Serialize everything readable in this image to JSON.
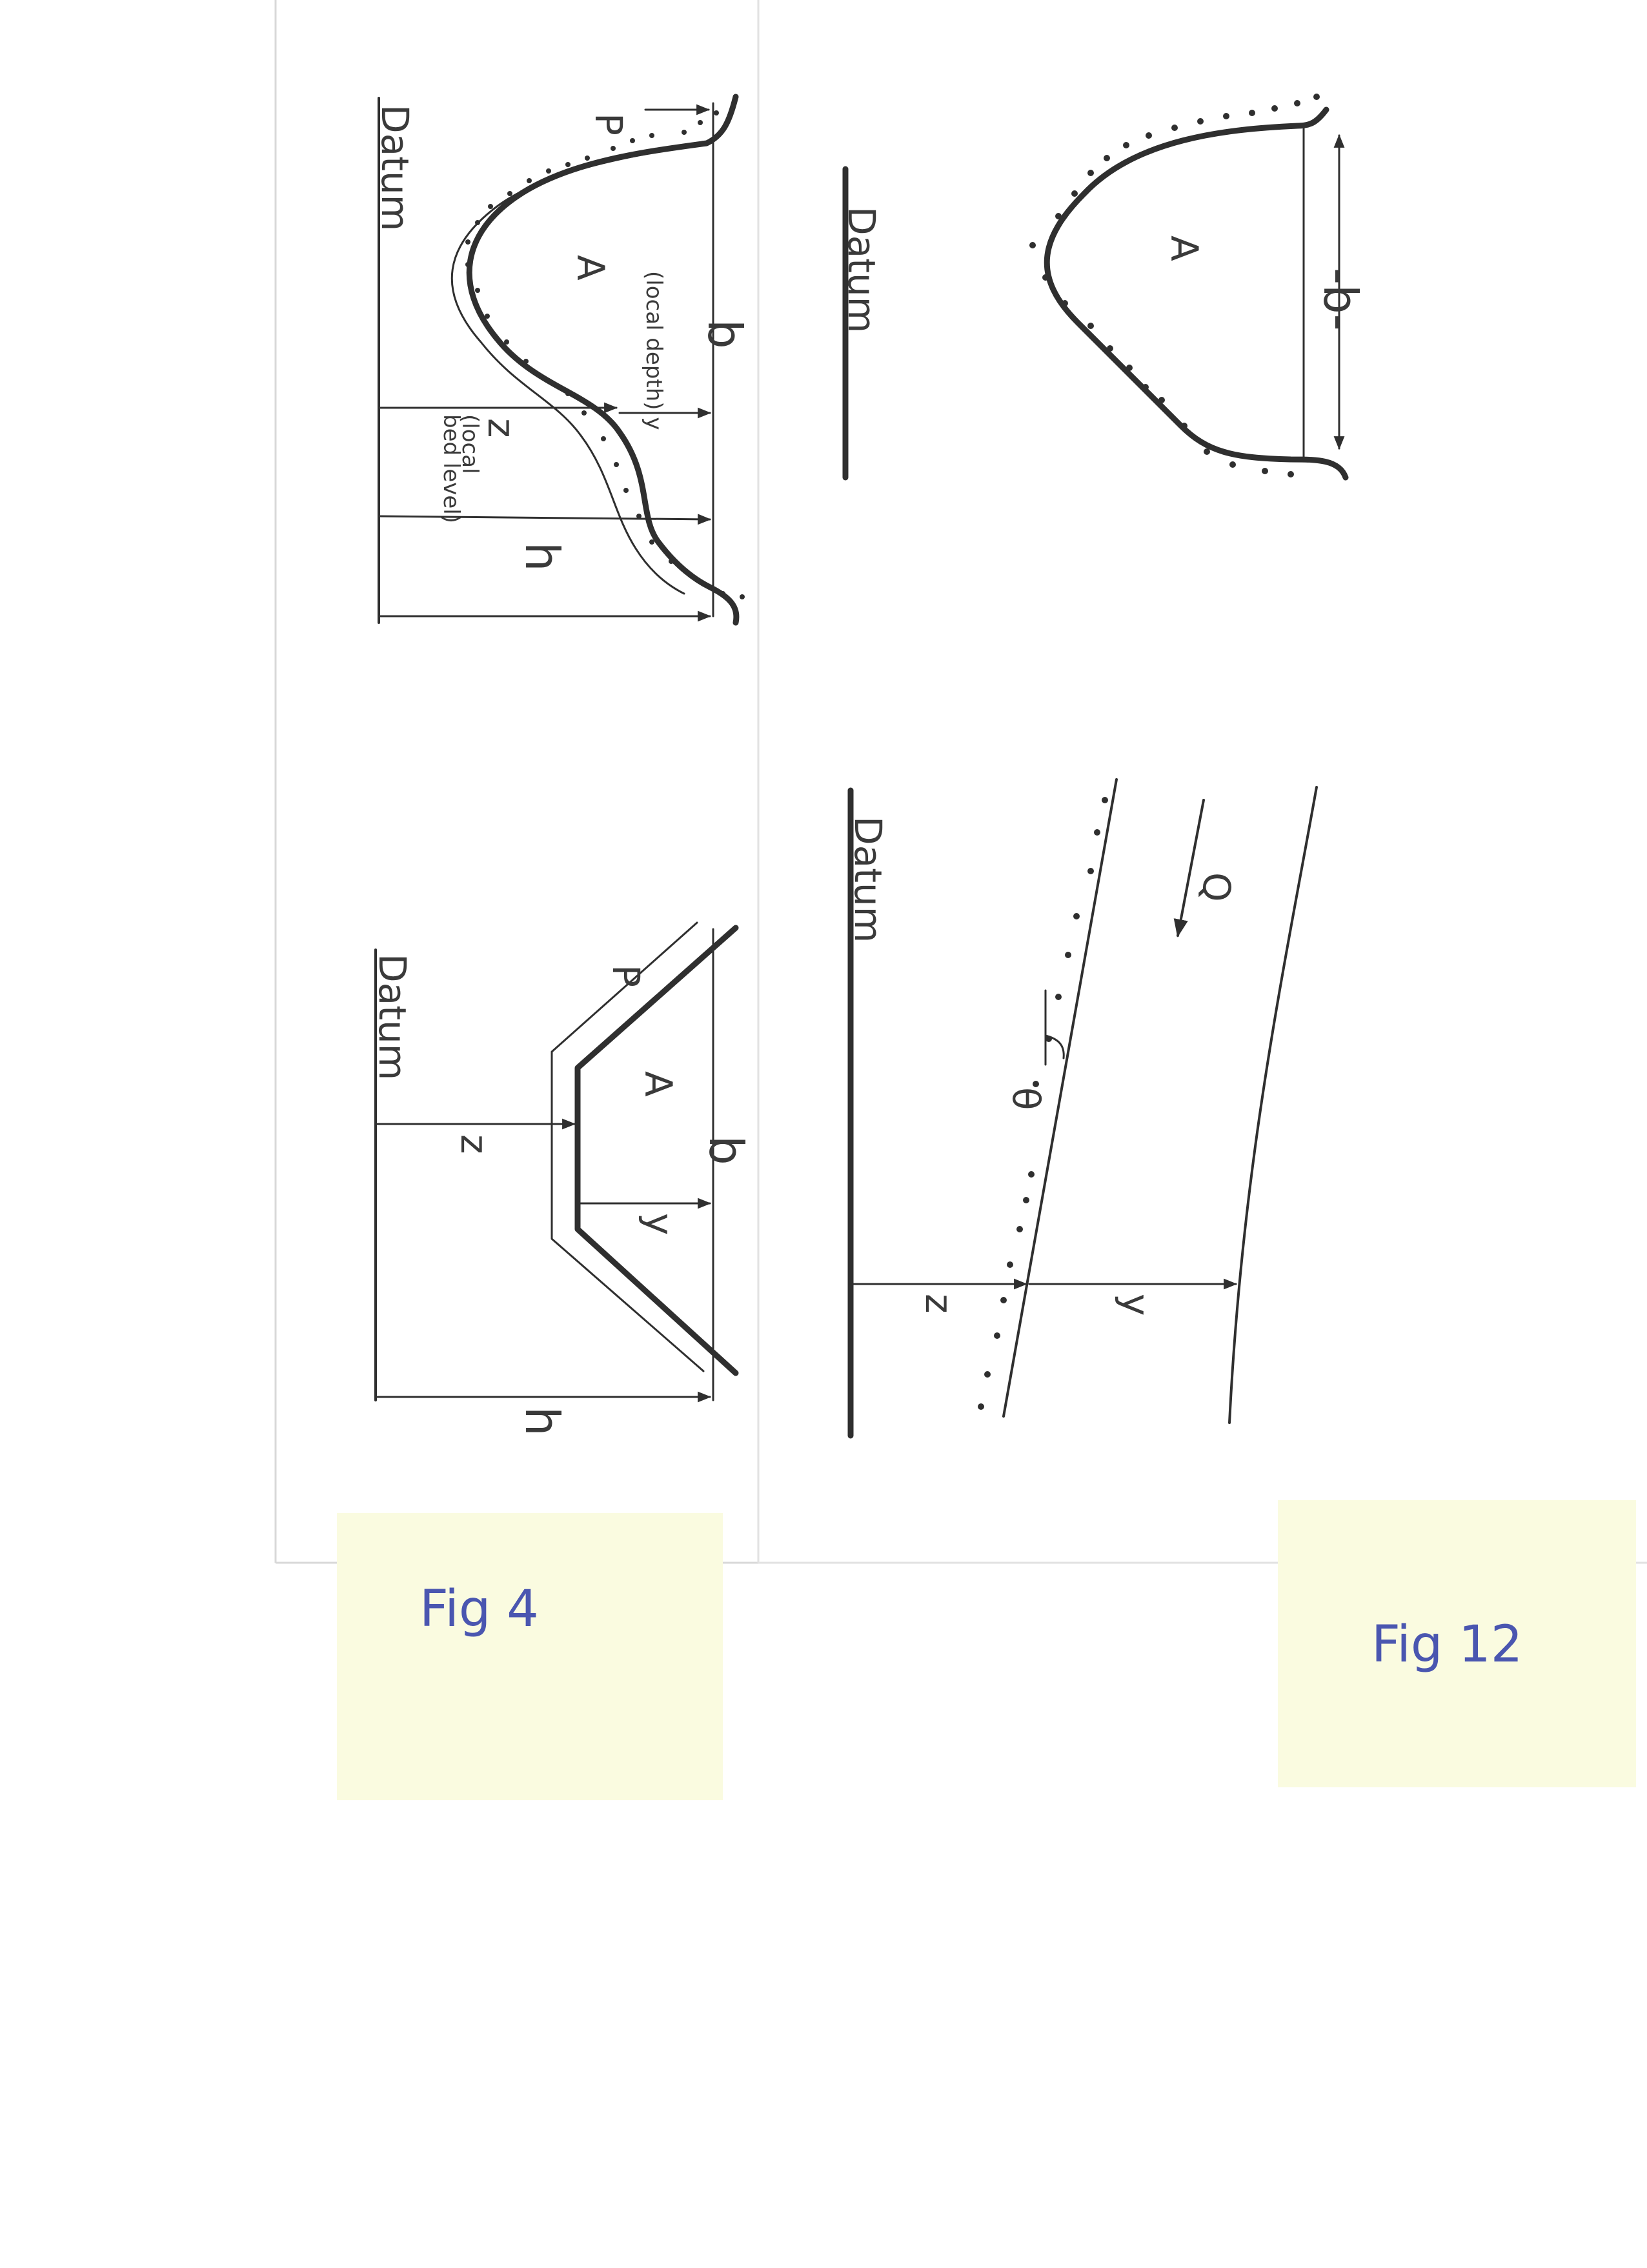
{
  "figures": {
    "fig4": {
      "note": "Fig 4",
      "irregular": {
        "datum": "Datum",
        "width": "b",
        "perimeter": "P",
        "area": "A",
        "local_depth": "(local depth) y",
        "bed_level_symbol": "z",
        "bed_level_text_1": "(local",
        "bed_level_text_2": "bed level)",
        "head": "h"
      },
      "trapezoid": {
        "datum": "Datum",
        "perimeter": "P",
        "area": "A",
        "width": "b",
        "bed_level": "z",
        "depth": "y",
        "head": "h"
      }
    },
    "fig12": {
      "note": "Fig 12",
      "section": {
        "area": "A",
        "width": "-b-",
        "datum": "Datum"
      },
      "profile": {
        "datum": "Datum",
        "discharge": "Q",
        "angle": "θ",
        "bed_level": "z",
        "depth": "y"
      }
    }
  },
  "colors": {
    "ink": "#2f2f2f",
    "sticky_note": "#fafbe0",
    "note_ink": "#4a56b0"
  }
}
